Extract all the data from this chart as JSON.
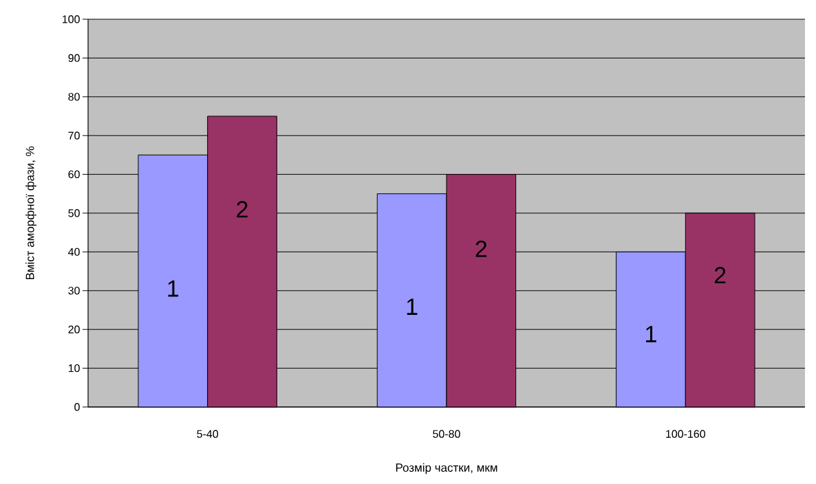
{
  "chart_data": {
    "type": "bar",
    "xlabel": "Розмір частки, мкм",
    "ylabel": "Вміст аморфної фази, %",
    "categories": [
      "5-40",
      "50-80",
      "100-160"
    ],
    "series": [
      {
        "name": "1",
        "color": "#9999ff",
        "values": [
          65,
          55,
          40
        ]
      },
      {
        "name": "2",
        "color": "#993366",
        "values": [
          75,
          60,
          50
        ]
      }
    ],
    "ylim": [
      0,
      100
    ],
    "yticks": [
      0,
      10,
      20,
      30,
      40,
      50,
      60,
      70,
      80,
      90,
      100
    ],
    "grid": "y"
  }
}
